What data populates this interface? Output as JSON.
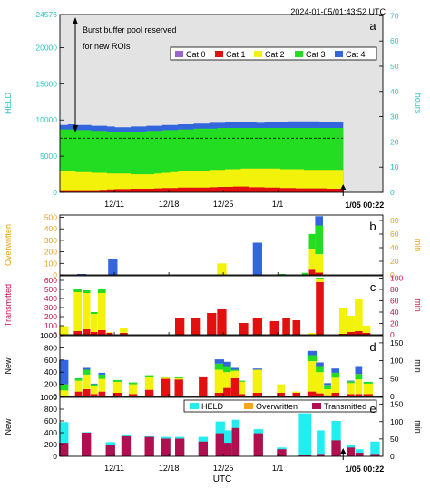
{
  "header": {
    "timestamp": "2024-01-05/01:43:52 UTC"
  },
  "x_axis": {
    "tick_labels": [
      "12/11",
      "12/18",
      "12/25",
      "1/1"
    ],
    "end_label": "1/05 00:22",
    "title": "UTC"
  },
  "colors": {
    "cat0": "#9966cc",
    "cat1": "#e31010",
    "cat2": "#f2f20a",
    "cat3": "#22dd22",
    "cat4": "#3366dd",
    "held": "#22eef0",
    "overwritten": "#f5a623",
    "transmitted": "#b01050",
    "left_axis_cyan": "#2bc3c3",
    "left_axis_orange": "#e6a21a",
    "left_axis_crimson": "#c0104a"
  },
  "chart_data": [
    {
      "panel": "a",
      "type": "area",
      "ylabel": "HELD",
      "y2label": "hours",
      "ylim": [
        0,
        24576
      ],
      "yticks": [
        "0",
        "5000",
        "10000",
        "15000",
        "20000",
        "24576"
      ],
      "y2ticks": [
        "0",
        "10",
        "20",
        "30",
        "40",
        "50",
        "60",
        "70"
      ],
      "annotation": [
        "Burst buffer pool reserved",
        "for new ROIs"
      ],
      "legend": [
        "Cat 0",
        "Cat 1",
        "Cat 2",
        "Cat 3",
        "Cat 4"
      ],
      "legend_placement": "top-right",
      "grid": false,
      "series_stack_tops": {
        "cat1": [
          300,
          300,
          300,
          300,
          300,
          350,
          400,
          450,
          450,
          500,
          500,
          500,
          550,
          600,
          600,
          650,
          650,
          650,
          650,
          700,
          750,
          750,
          800,
          800,
          700,
          700,
          650,
          650,
          600,
          600,
          550,
          550,
          550,
          550,
          500,
          500
        ],
        "cat2": [
          3000,
          3000,
          2800,
          2800,
          2700,
          2700,
          2600,
          2600,
          2600,
          2500,
          2500,
          2500,
          2600,
          2700,
          2800,
          2900,
          2900,
          3000,
          3000,
          3100,
          3100,
          3200,
          3200,
          3300,
          3300,
          3300,
          3300,
          3300,
          3200,
          3200,
          3200,
          3100,
          3100,
          3100,
          3100,
          3100
        ],
        "cat3": [
          8700,
          8700,
          8600,
          8600,
          8500,
          8500,
          8400,
          8300,
          8300,
          8400,
          8400,
          8500,
          8500,
          8600,
          8600,
          8700,
          8700,
          8800,
          8800,
          8800,
          8900,
          8900,
          8900,
          8900,
          8900,
          8900,
          8900,
          8900,
          8900,
          8900,
          8900,
          8900,
          8900,
          8900,
          8900,
          8900
        ],
        "cat4": [
          9300,
          9400,
          9300,
          9300,
          9200,
          9200,
          9100,
          9000,
          9000,
          9100,
          9100,
          9200,
          9200,
          9300,
          9300,
          9400,
          9400,
          9500,
          9500,
          9600,
          9600,
          9700,
          9700,
          9700,
          9700,
          9600,
          9700,
          9700,
          9700,
          9800,
          9800,
          9800,
          9800,
          9700,
          9700,
          9700
        ]
      },
      "dashed_line_hours": 21.5
    },
    {
      "panel": "b",
      "type": "bar",
      "ylabel": "Overwritten",
      "y2label": "min",
      "ylim": [
        0,
        520
      ],
      "yticks": [
        "0",
        "100",
        "200",
        "300",
        "400",
        "500"
      ],
      "y2ticks": [
        "0",
        "20",
        "40",
        "60",
        "80"
      ],
      "bars": [
        {
          "day": 2.8,
          "w": 1.2,
          "stack": [
            [
              0,
              0,
              0,
              0,
              8
            ]
          ]
        },
        {
          "day": 6.8,
          "w": 1.2,
          "stack": [
            [
              0,
              0,
              0,
              0,
              140
            ]
          ]
        },
        {
          "day": 20.8,
          "w": 1.2,
          "stack": [
            [
              0,
              0,
              100,
              0,
              0
            ]
          ]
        },
        {
          "day": 25.4,
          "w": 1.2,
          "stack": [
            [
              0,
              0,
              0,
              0,
              280
            ]
          ]
        },
        {
          "day": 28.6,
          "w": 0.8,
          "stack": [
            [
              0,
              0,
              0,
              8,
              0
            ]
          ]
        },
        {
          "day": 31.5,
          "w": 0.8,
          "stack": [
            [
              0,
              0,
              0,
              18,
              0
            ]
          ]
        },
        {
          "day": 32.4,
          "w": 0.8,
          "stack": [
            [
              0,
              45,
              180,
              130,
              0
            ]
          ]
        },
        {
          "day": 33.3,
          "w": 1.0,
          "stack": [
            [
              0,
              20,
              160,
              250,
              80
            ]
          ]
        },
        {
          "day": 39.4,
          "w": 0.8,
          "stack": [
            [
              0,
              0,
              5,
              0,
              0
            ]
          ]
        }
      ]
    },
    {
      "panel": "c",
      "type": "bar",
      "ylabel": "Transmitted",
      "y2label": "min",
      "ylim": [
        0,
        650
      ],
      "yticks": [
        "0",
        "100",
        "200",
        "300",
        "400",
        "500",
        "600"
      ],
      "y2ticks": [
        "0",
        "20",
        "40",
        "60",
        "80",
        "100"
      ],
      "bars": [
        {
          "day": 0.5,
          "w": 1.2,
          "stack": [
            [
              0,
              5,
              90,
              0,
              0
            ]
          ]
        },
        {
          "day": 2.3,
          "w": 1.0,
          "stack": [
            [
              0,
              40,
              430,
              40,
              0
            ]
          ]
        },
        {
          "day": 3.4,
          "w": 1.0,
          "stack": [
            [
              0,
              60,
              400,
              30,
              0
            ]
          ]
        },
        {
          "day": 4.4,
          "w": 0.9,
          "stack": [
            [
              0,
              30,
              200,
              20,
              0
            ]
          ]
        },
        {
          "day": 5.4,
          "w": 1.0,
          "stack": [
            [
              0,
              50,
              410,
              50,
              0
            ]
          ]
        },
        {
          "day": 6.4,
          "w": 0.8,
          "stack": [
            [
              0,
              20,
              10,
              0,
              0
            ]
          ]
        },
        {
          "day": 8.2,
          "w": 1.0,
          "stack": [
            [
              0,
              20,
              60,
              0,
              0
            ]
          ]
        },
        {
          "day": 15.4,
          "w": 1.2,
          "stack": [
            [
              0,
              180,
              0,
              0,
              0
            ]
          ]
        },
        {
          "day": 17.5,
          "w": 1.2,
          "stack": [
            [
              0,
              190,
              0,
              0,
              0
            ]
          ]
        },
        {
          "day": 19.5,
          "w": 1.2,
          "stack": [
            [
              0,
              240,
              0,
              0,
              0
            ]
          ]
        },
        {
          "day": 20.8,
          "w": 1.2,
          "stack": [
            [
              0,
              280,
              0,
              0,
              0
            ]
          ]
        },
        {
          "day": 23.6,
          "w": 1.2,
          "stack": [
            [
              0,
              130,
              0,
              0,
              0
            ]
          ]
        },
        {
          "day": 25.4,
          "w": 1.2,
          "stack": [
            [
              0,
              190,
              0,
              0,
              0
            ]
          ]
        },
        {
          "day": 27.6,
          "w": 1.2,
          "stack": [
            [
              0,
              150,
              0,
              0,
              0
            ]
          ]
        },
        {
          "day": 29.1,
          "w": 1.0,
          "stack": [
            [
              0,
              190,
              0,
              0,
              0
            ]
          ]
        },
        {
          "day": 30.4,
          "w": 1.0,
          "stack": [
            [
              0,
              160,
              0,
              0,
              0
            ]
          ]
        },
        {
          "day": 32.4,
          "w": 0.8,
          "stack": [
            [
              0,
              0,
              20,
              0,
              0
            ]
          ]
        },
        {
          "day": 33.4,
          "w": 1.0,
          "stack": [
            [
              0,
              580,
              30,
              20,
              0
            ]
          ]
        },
        {
          "day": 36.4,
          "w": 1.0,
          "stack": [
            [
              0,
              10,
              280,
              0,
              0
            ]
          ]
        },
        {
          "day": 37.4,
          "w": 1.0,
          "stack": [
            [
              0,
              30,
              180,
              0,
              0
            ]
          ]
        },
        {
          "day": 38.4,
          "w": 1.0,
          "stack": [
            [
              0,
              40,
              350,
              0,
              0
            ]
          ]
        },
        {
          "day": 39.4,
          "w": 1.0,
          "stack": [
            [
              0,
              20,
              80,
              0,
              0
            ]
          ]
        }
      ]
    },
    {
      "panel": "d",
      "type": "bar",
      "ylabel": "New",
      "y2label": "min",
      "ylim": [
        0,
        1000
      ],
      "yticks": [
        "0",
        "200",
        "400",
        "600",
        "800",
        "1000"
      ],
      "y2ticks": [
        "0",
        "50",
        "100",
        "150"
      ],
      "bars": [
        {
          "day": 0.5,
          "w": 1.2,
          "stack": [
            [
              0,
              0,
              100,
              100,
              400
            ]
          ]
        },
        {
          "day": 2.4,
          "w": 0.9,
          "stack": [
            [
              0,
              80,
              180,
              40,
              0
            ]
          ]
        },
        {
          "day": 3.4,
          "w": 1.0,
          "stack": [
            [
              0,
              120,
              240,
              80,
              30
            ]
          ]
        },
        {
          "day": 4.4,
          "w": 0.9,
          "stack": [
            [
              0,
              40,
              130,
              30,
              10
            ]
          ]
        },
        {
          "day": 5.4,
          "w": 0.9,
          "stack": [
            [
              0,
              80,
              210,
              70,
              30
            ]
          ]
        },
        {
          "day": 7.4,
          "w": 1.1,
          "stack": [
            [
              0,
              60,
              180,
              30,
              0
            ]
          ]
        },
        {
          "day": 9.4,
          "w": 1.1,
          "stack": [
            [
              0,
              40,
              160,
              30,
              0
            ]
          ]
        },
        {
          "day": 11.5,
          "w": 1.1,
          "stack": [
            [
              0,
              110,
              210,
              30,
              0
            ]
          ]
        },
        {
          "day": 13.6,
          "w": 1.1,
          "stack": [
            [
              0,
              290,
              20,
              20,
              0
            ]
          ]
        },
        {
          "day": 15.3,
          "w": 1.1,
          "stack": [
            [
              0,
              280,
              20,
              20,
              0
            ]
          ]
        },
        {
          "day": 18.4,
          "w": 1.1,
          "stack": [
            [
              0,
              330,
              0,
              0,
              0
            ]
          ]
        },
        {
          "day": 20.5,
          "w": 1.2,
          "stack": [
            [
              0,
              60,
              380,
              100,
              70
            ]
          ]
        },
        {
          "day": 21.5,
          "w": 1.0,
          "stack": [
            [
              0,
              140,
              260,
              100,
              70
            ]
          ]
        },
        {
          "day": 22.5,
          "w": 1.0,
          "stack": [
            [
              0,
              300,
              120,
              20,
              30
            ]
          ]
        },
        {
          "day": 23.4,
          "w": 0.8,
          "stack": [
            [
              0,
              40,
              200,
              20,
              0
            ]
          ]
        },
        {
          "day": 25.4,
          "w": 1.2,
          "stack": [
            [
              0,
              60,
              380,
              0,
              20
            ]
          ]
        },
        {
          "day": 28.4,
          "w": 1.0,
          "stack": [
            [
              0,
              60,
              140,
              0,
              0
            ]
          ]
        },
        {
          "day": 30.4,
          "w": 1.0,
          "stack": [
            [
              0,
              60,
              20,
              0,
              0
            ]
          ]
        },
        {
          "day": 32.4,
          "w": 1.2,
          "stack": [
            [
              0,
              80,
              500,
              100,
              70
            ]
          ]
        },
        {
          "day": 33.4,
          "w": 1.0,
          "stack": [
            [
              0,
              50,
              350,
              100,
              60
            ]
          ]
        },
        {
          "day": 34.4,
          "w": 0.9,
          "stack": [
            [
              0,
              20,
              100,
              70,
              30
            ]
          ]
        },
        {
          "day": 35.4,
          "w": 1.0,
          "stack": [
            [
              0,
              60,
              250,
              80,
              70
            ]
          ]
        },
        {
          "day": 37.4,
          "w": 0.9,
          "stack": [
            [
              0,
              40,
              180,
              30,
              10
            ]
          ]
        },
        {
          "day": 38.4,
          "w": 0.9,
          "stack": [
            [
              0,
              40,
              240,
              90,
              130
            ]
          ]
        },
        {
          "day": 39.6,
          "w": 1.2,
          "stack": [
            [
              0,
              40,
              170,
              30,
              0
            ]
          ]
        }
      ]
    },
    {
      "panel": "e",
      "type": "bar",
      "ylabel": "New",
      "y2label": "min",
      "ylim": [
        0,
        1000
      ],
      "yticks": [
        "0",
        "200",
        "400",
        "600",
        "800",
        "1000"
      ],
      "y2ticks": [
        "0",
        "50",
        "100",
        "150"
      ],
      "legend": [
        "HELD",
        "Overwritten",
        "Transmitted"
      ],
      "legend_placement": "top",
      "bars": [
        {
          "day": 0.5,
          "w": 1.2,
          "held": 580,
          "overwritten": 0,
          "transmitted": 230
        },
        {
          "day": 3.4,
          "w": 1.2,
          "held": 410,
          "overwritten": 0,
          "transmitted": 400
        },
        {
          "day": 6.5,
          "w": 1.2,
          "held": 240,
          "overwritten": 0,
          "transmitted": 200
        },
        {
          "day": 8.5,
          "w": 1.2,
          "held": 370,
          "overwritten": 0,
          "transmitted": 340
        },
        {
          "day": 11.5,
          "w": 1.2,
          "held": 340,
          "overwritten": 0,
          "transmitted": 330
        },
        {
          "day": 13.6,
          "w": 1.2,
          "held": 330,
          "overwritten": 0,
          "transmitted": 300
        },
        {
          "day": 15.4,
          "w": 1.2,
          "held": 330,
          "overwritten": 0,
          "transmitted": 300
        },
        {
          "day": 18.4,
          "w": 1.2,
          "held": 330,
          "overwritten": 0,
          "transmitted": 250
        },
        {
          "day": 20.6,
          "w": 1.2,
          "held": 590,
          "overwritten": 0,
          "transmitted": 390
        },
        {
          "day": 21.6,
          "w": 1.0,
          "held": 440,
          "overwritten": 0,
          "transmitted": 230
        },
        {
          "day": 22.6,
          "w": 1.0,
          "held": 620,
          "overwritten": 0,
          "transmitted": 480
        },
        {
          "day": 25.5,
          "w": 1.2,
          "held": 460,
          "overwritten": 0,
          "transmitted": 390
        },
        {
          "day": 28.5,
          "w": 1.2,
          "held": 150,
          "overwritten": 0,
          "transmitted": 120
        },
        {
          "day": 31.5,
          "w": 1.6,
          "held": 730,
          "overwritten": 0,
          "transmitted": 30
        },
        {
          "day": 33.5,
          "w": 1.0,
          "held": 440,
          "overwritten": 0,
          "transmitted": 40
        },
        {
          "day": 35.5,
          "w": 1.2,
          "held": 600,
          "overwritten": 0,
          "transmitted": 270
        },
        {
          "day": 37.4,
          "w": 1.0,
          "held": 200,
          "overwritten": 0,
          "transmitted": 150
        },
        {
          "day": 38.5,
          "w": 1.0,
          "held": 120,
          "overwritten": 0,
          "transmitted": 60
        },
        {
          "day": 40.5,
          "w": 1.2,
          "held": 250,
          "overwritten": 0,
          "transmitted": 40
        }
      ]
    }
  ]
}
